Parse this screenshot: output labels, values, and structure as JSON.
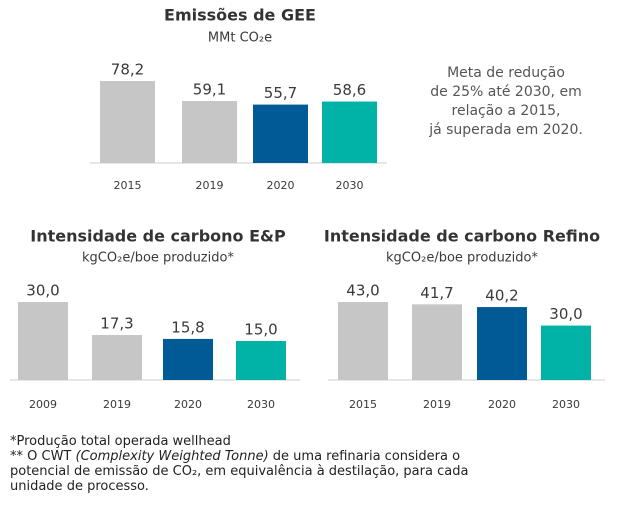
{
  "chart_data": [
    {
      "type": "bar",
      "title": "Emissões de GEE",
      "subtitle": "MMt CO₂e",
      "categories": [
        "2015",
        "2019",
        "2020",
        "2030"
      ],
      "values": [
        78.2,
        59.1,
        55.7,
        58.6
      ],
      "value_labels": [
        "78,2",
        "59,1",
        "55,7",
        "58,6"
      ],
      "colors": [
        "#c6c6c6",
        "#c6c6c6",
        "#005a96",
        "#00b3a6"
      ],
      "annotation": [
        "Meta de redução",
        "de 25% até 2030, em",
        "relação a 2015,",
        "já superada em 2020."
      ]
    },
    {
      "type": "bar",
      "title": "Intensidade de carbono E&P",
      "subtitle": "kgCO₂e/boe produzido*",
      "categories": [
        "2009",
        "2019",
        "2020",
        "2030"
      ],
      "values": [
        30.0,
        17.3,
        15.8,
        15.0
      ],
      "value_labels": [
        "30,0",
        "17,3",
        "15,8",
        "15,0"
      ],
      "colors": [
        "#c6c6c6",
        "#c6c6c6",
        "#005a96",
        "#00b3a6"
      ]
    },
    {
      "type": "bar",
      "title": "Intensidade de carbono Refino",
      "subtitle": "kgCO₂e/boe produzido*",
      "categories": [
        "2015",
        "2019",
        "2020",
        "2030"
      ],
      "values": [
        43.0,
        41.7,
        40.2,
        30.0
      ],
      "value_labels": [
        "43,0",
        "41,7",
        "40,2",
        "30,0"
      ],
      "colors": [
        "#c6c6c6",
        "#c6c6c6",
        "#005a96",
        "#00b3a6"
      ]
    }
  ],
  "footnotes": {
    "first": "*Produção total operada wellhead",
    "second": [
      "** O CWT",
      "(Complexity Weighted Tonne)",
      "de uma refinaria considera o potencial de emissão de CO₂, em equivalência à destilação, para cada unidade de processo."
    ]
  }
}
